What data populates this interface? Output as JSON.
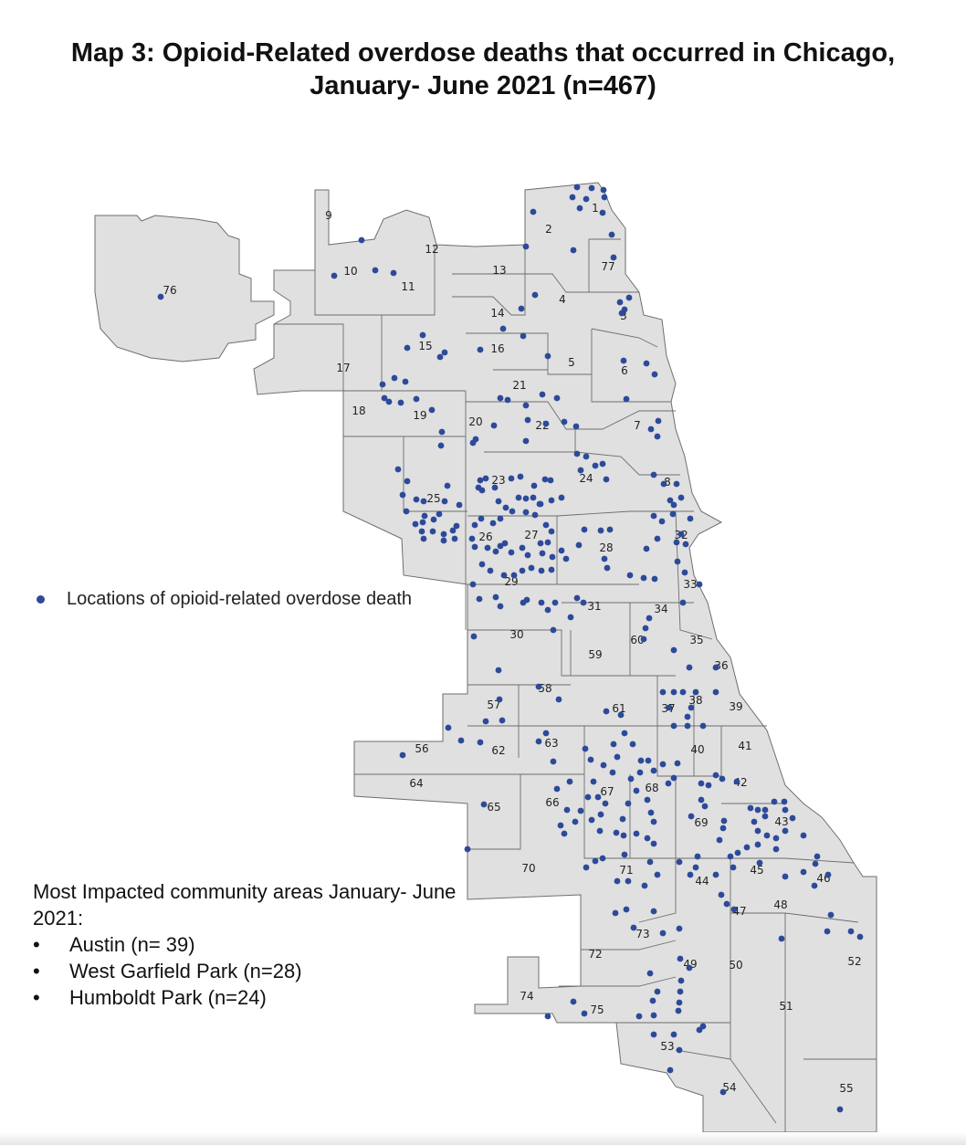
{
  "title": {
    "line1": "Map 3: Opioid-Related overdose deaths that occurred in Chicago,",
    "line2": "January- June 2021 (n=467)"
  },
  "legend": {
    "label": "Locations of opioid-related overdose death"
  },
  "impact": {
    "heading": "Most Impacted community areas January- June 2021:",
    "items": [
      {
        "bullet": "•",
        "text": "Austin (n= 39)"
      },
      {
        "bullet": "•",
        "text": "West Garfield Park (n=28)"
      },
      {
        "bullet": "•",
        "text": "Humboldt Park (n=24)"
      }
    ]
  },
  "colors": {
    "land": "#e0e0e0",
    "border": "#6e6e6e",
    "dot": "#2d4a9a"
  },
  "community_areas": [
    "1",
    "2",
    "3",
    "4",
    "5",
    "6",
    "7",
    "8",
    "9",
    "10",
    "11",
    "12",
    "13",
    "14",
    "15",
    "16",
    "17",
    "18",
    "19",
    "20",
    "21",
    "22",
    "23",
    "24",
    "25",
    "26",
    "27",
    "28",
    "29",
    "30",
    "31",
    "32",
    "33",
    "34",
    "35",
    "36",
    "37",
    "38",
    "39",
    "40",
    "41",
    "42",
    "43",
    "44",
    "45",
    "46",
    "47",
    "48",
    "49",
    "50",
    "51",
    "52",
    "53",
    "54",
    "55",
    "56",
    "57",
    "58",
    "59",
    "60",
    "61",
    "62",
    "63",
    "64",
    "65",
    "66",
    "67",
    "68",
    "69",
    "70",
    "71",
    "72",
    "73",
    "74",
    "75",
    "76",
    "77"
  ]
}
